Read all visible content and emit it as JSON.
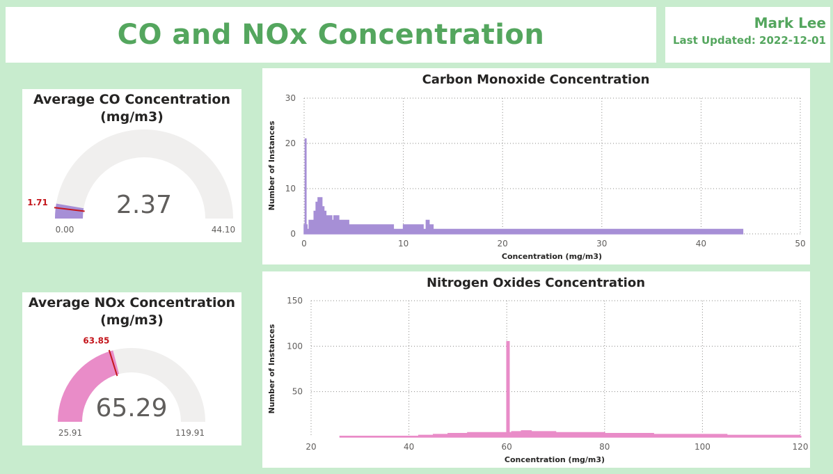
{
  "header": {
    "title": "CO and NOx Concentration",
    "author": "Mark Lee",
    "last_updated": "Last Updated: 2022-12-01"
  },
  "colors": {
    "accent_green": "#54a65e",
    "background": "#c8ecce",
    "co_series": "#a68fd6",
    "nox_series": "#e98cc8",
    "target_line": "#c4161c",
    "gauge_track": "#f0efee"
  },
  "gauges": {
    "co": {
      "title_line1": "Average CO Concentration",
      "title_line2": "(mg/m3)",
      "value": 2.37,
      "value_label": "2.37",
      "min": 0.0,
      "min_label": "0.00",
      "max": 44.1,
      "max_label": "44.10",
      "target": 1.71,
      "target_label": "1.71"
    },
    "nox": {
      "title_line1": "Average NOx Concentration",
      "title_line2": "(mg/m3)",
      "value": 65.29,
      "value_label": "65.29",
      "min": 25.91,
      "min_label": "25.91",
      "max": 119.91,
      "max_label": "119.91",
      "target": 63.85,
      "target_label": "63.85"
    }
  },
  "chart_data": [
    {
      "type": "area",
      "title": "Carbon Monoxide Concentration",
      "xlabel": "Concentration (mg/m3)",
      "ylabel": "Number of Instances",
      "xlim": [
        0,
        50
      ],
      "ylim": [
        0,
        30
      ],
      "xticks": [
        0,
        10,
        20,
        30,
        40,
        50
      ],
      "yticks": [
        0,
        10,
        20,
        30
      ],
      "grid": true,
      "x": [
        0.0,
        0.1,
        0.2,
        0.3,
        0.5,
        0.8,
        1.0,
        1.2,
        1.4,
        1.6,
        1.8,
        2.0,
        2.2,
        2.5,
        2.8,
        3.0,
        3.5,
        4.0,
        4.5,
        5.0,
        6.0,
        7.0,
        8.0,
        9.0,
        10.0,
        11.0,
        12.0,
        12.3,
        12.6,
        13.0,
        14.0,
        20.0,
        30.0,
        40.0,
        44.1
      ],
      "values": [
        2,
        21,
        2,
        1,
        3,
        3,
        5,
        7,
        8,
        8,
        6,
        5,
        4,
        4,
        3,
        4,
        3,
        3,
        2,
        2,
        2,
        2,
        2,
        1,
        2,
        2,
        1,
        3,
        2,
        1,
        1,
        1,
        1,
        1,
        1
      ]
    },
    {
      "type": "area",
      "title": "Nitrogen Oxides Concentration",
      "xlabel": "Concentration (mg/m3)",
      "ylabel": "Number of Instances",
      "xlim": [
        20,
        120
      ],
      "ylim": [
        0,
        150
      ],
      "xticks": [
        20,
        40,
        60,
        80,
        100,
        120
      ],
      "yticks": [
        50,
        100,
        150
      ],
      "grid": true,
      "x": [
        25.9,
        30,
        35,
        40,
        42,
        45,
        48,
        50,
        52,
        55,
        58,
        59.5,
        60,
        60.5,
        61,
        63,
        65,
        70,
        75,
        80,
        85,
        90,
        95,
        100,
        105,
        110,
        115,
        119.9
      ],
      "values": [
        1,
        1,
        1,
        1,
        2,
        3,
        4,
        4,
        5,
        5,
        5,
        5,
        105,
        5,
        6,
        7,
        6,
        5,
        5,
        4,
        4,
        3,
        3,
        3,
        2,
        2,
        2,
        1
      ]
    }
  ]
}
